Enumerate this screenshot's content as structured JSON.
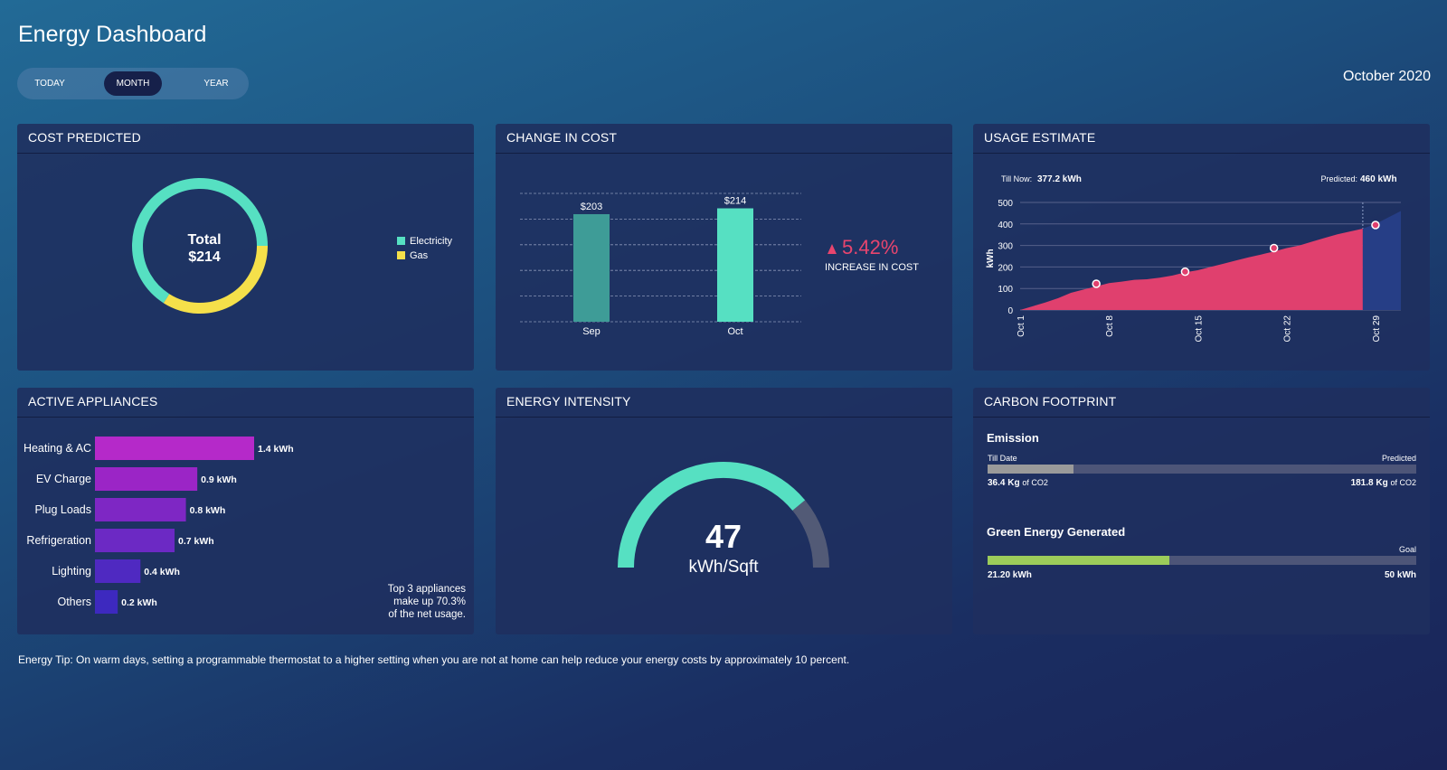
{
  "page_title": "Energy Dashboard",
  "date": "October 2020",
  "range_toggle": {
    "today": "TODAY",
    "month": "MONTH",
    "year": "YEAR",
    "selected": "MONTH"
  },
  "colors": {
    "electricity": "#56e0c2",
    "gas": "#f5e04a",
    "usage_actual": "#e0406e",
    "usage_predicted": "#263e86",
    "increase": "#e8456e",
    "gauge_fill": "#56e0c2",
    "gauge_track": "#525a76",
    "green_energy": "#9ccc5a",
    "emission": "#9a9a9a"
  },
  "cost_predicted": {
    "title": "COST PREDICTED",
    "total_label": "Total",
    "total_value": "$214",
    "legend": [
      {
        "name": "Electricity",
        "color": "#56e0c2"
      },
      {
        "name": "Gas",
        "color": "#f5e04a"
      }
    ],
    "chart_data": {
      "type": "pie",
      "slices": [
        {
          "name": "Electricity",
          "value": 0.66
        },
        {
          "name": "Gas",
          "value": 0.34
        }
      ]
    }
  },
  "change_in_cost": {
    "title": "CHANGE IN COST",
    "change_value": "5.42%",
    "change_icon": "triangle-up-icon",
    "change_label": "INCREASE IN COST",
    "chart_data": {
      "type": "bar",
      "categories": [
        "Sep",
        "Oct"
      ],
      "values": [
        203,
        214
      ],
      "value_labels": [
        "$203",
        "$214"
      ],
      "colors": [
        "#3e9c97",
        "#56e0c2"
      ],
      "ylim": [
        0,
        250
      ]
    }
  },
  "usage_estimate": {
    "title": "USAGE ESTIMATE",
    "till_now_label": "Till Now:",
    "till_now_value": "377.2 kWh",
    "predicted_label": "Predicted:",
    "predicted_value": "460 kWh",
    "chart_data": {
      "type": "area",
      "ylabel": "kWh",
      "ylim": [
        0,
        500
      ],
      "yticks": [
        "0",
        "100",
        "200",
        "300",
        "400",
        "500"
      ],
      "xticks": [
        "Oct 1",
        "Oct 8",
        "Oct 15",
        "Oct 22",
        "Oct 29"
      ],
      "xlim": [
        1,
        31
      ],
      "actual": [
        [
          1,
          0
        ],
        [
          3,
          35
        ],
        [
          4,
          55
        ],
        [
          5,
          80
        ],
        [
          6,
          95
        ],
        [
          7,
          110
        ],
        [
          8,
          125
        ],
        [
          9,
          132
        ],
        [
          10,
          140
        ],
        [
          11,
          143
        ],
        [
          12,
          150
        ],
        [
          13,
          160
        ],
        [
          14,
          175
        ],
        [
          15,
          185
        ],
        [
          16,
          200
        ],
        [
          17,
          215
        ],
        [
          18,
          230
        ],
        [
          19,
          245
        ],
        [
          20,
          258
        ],
        [
          21,
          272
        ],
        [
          22,
          288
        ],
        [
          23,
          300
        ],
        [
          24,
          318
        ],
        [
          25,
          335
        ],
        [
          26,
          352
        ],
        [
          27,
          365
        ],
        [
          28,
          378
        ]
      ],
      "predicted": [
        [
          28,
          378
        ],
        [
          29,
          400
        ],
        [
          30,
          430
        ],
        [
          31,
          460
        ]
      ],
      "markers": [
        [
          7,
          122
        ],
        [
          14,
          178
        ],
        [
          21,
          288
        ],
        [
          29,
          395
        ]
      ]
    }
  },
  "active_appliances": {
    "title": "ACTIVE APPLIANCES",
    "note_lines": [
      "Top 3 appliances",
      "make up 70.3%",
      "of the net usage."
    ],
    "chart_data": {
      "type": "bar",
      "orientation": "horizontal",
      "categories": [
        "Heating & AC",
        "EV Charge",
        "Plug Loads",
        "Refrigeration",
        "Lighting",
        "Others"
      ],
      "values": [
        1.4,
        0.9,
        0.8,
        0.7,
        0.4,
        0.2
      ],
      "value_labels": [
        "1.4 kWh",
        "0.9 kWh",
        "0.8 kWh",
        "0.7 kWh",
        "0.4 kWh",
        "0.2 kWh"
      ],
      "colors": [
        "#b529c9",
        "#9b25c6",
        "#7e27c4",
        "#6c29c4",
        "#4f29c1",
        "#3d29bf"
      ],
      "xlim": [
        0,
        1.4
      ]
    }
  },
  "energy_intensity": {
    "title": "ENERGY INTENSITY",
    "value": "47",
    "unit": "kWh/Sqft",
    "fraction": 0.78
  },
  "carbon_footprint": {
    "title": "CARBON FOOTPRINT",
    "emission": {
      "title": "Emission",
      "left_label": "Till Date",
      "right_label": "Predicted",
      "left_value": "36.4 Kg",
      "right_value": "181.8 Kg",
      "unit": "of CO2",
      "fraction": 0.2
    },
    "green": {
      "title": "Green Energy Generated",
      "right_label": "Goal",
      "left_value": "21.20 kWh",
      "right_value": "50 kWh",
      "fraction": 0.424
    }
  },
  "tip": {
    "label": "Energy Tip:",
    "text": "On warm days, setting a programmable thermostat to a higher setting when you are not at home can help reduce your energy costs by approximately 10 percent."
  }
}
